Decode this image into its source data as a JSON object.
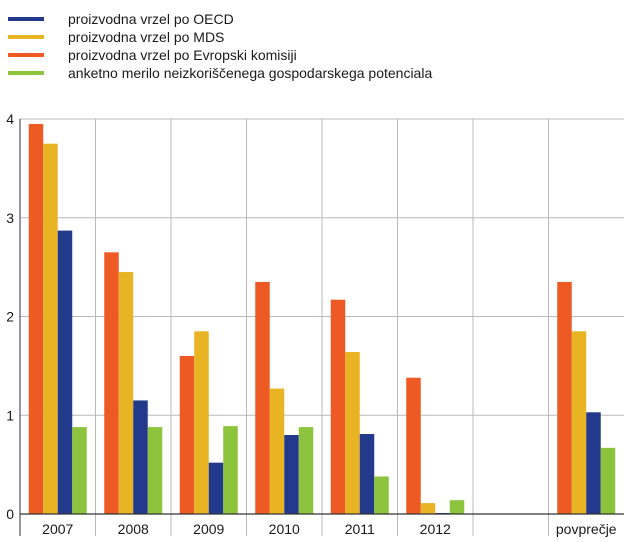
{
  "chart_data": {
    "type": "bar",
    "categories": [
      "2007",
      "2008",
      "2009",
      "2010",
      "2011",
      "2012",
      "",
      "povprečje"
    ],
    "series": [
      {
        "name": "proizvodna vrzel po Evropski komisiji",
        "color": "#ee5a24",
        "values": [
          3.95,
          2.65,
          1.6,
          2.35,
          2.17,
          1.38,
          null,
          2.35
        ]
      },
      {
        "name": "proizvodna vrzel po MDS",
        "color": "#e8b424",
        "values": [
          3.75,
          2.45,
          1.85,
          1.27,
          1.64,
          0.11,
          null,
          1.85
        ]
      },
      {
        "name": "proizvodna vrzel po OECD",
        "color": "#233a8c",
        "values": [
          2.87,
          1.15,
          0.52,
          0.8,
          0.81,
          0.0,
          null,
          1.03
        ]
      },
      {
        "name": "anketno merilo neizkoriščenega gospodarskega potenciala",
        "color": "#8cc43e",
        "values": [
          0.88,
          0.88,
          0.89,
          0.88,
          0.38,
          0.14,
          null,
          0.67
        ]
      }
    ],
    "legend_order": [
      2,
      1,
      0,
      3
    ],
    "ylim": [
      0,
      4
    ],
    "yticks": [
      "0",
      "1",
      "2",
      "3",
      "4"
    ],
    "grid": true,
    "legend": "top-left"
  }
}
